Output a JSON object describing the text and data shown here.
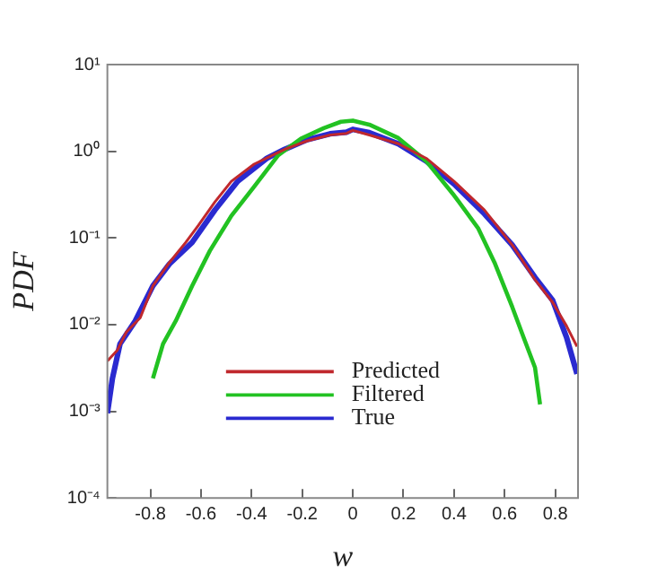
{
  "chart_data": {
    "type": "line",
    "xlabel": "w",
    "ylabel": "PDF",
    "log": "y",
    "grid": false,
    "legend": "bottom",
    "marker": "none",
    "line_style": "solid",
    "xlim": [
      -0.97,
      0.89
    ],
    "xticks": [
      -0.8,
      -0.6,
      -0.4,
      -0.2,
      0,
      0.2,
      0.4,
      0.6,
      0.8
    ],
    "ylim": [
      0.0001,
      10
    ],
    "yticks": [
      {
        "value": 0.0001,
        "label": "10⁻⁴"
      },
      {
        "value": 0.001,
        "label": "10⁻³"
      },
      {
        "value": 0.01,
        "label": "10⁻²"
      },
      {
        "value": 0.1,
        "label": "10⁻¹"
      },
      {
        "value": 1,
        "label": "10⁰"
      },
      {
        "value": 10,
        "label": "10¹"
      }
    ],
    "series": [
      {
        "name": "Predicted",
        "color": "#c0282d",
        "x": [
          -0.97,
          -0.93,
          -0.895,
          -0.84,
          -0.79,
          -0.725,
          -0.66,
          -0.61,
          -0.545,
          -0.48,
          -0.39,
          -0.27,
          -0.18,
          -0.09,
          -0.025,
          0,
          0.065,
          0.18,
          0.29,
          0.4,
          0.52,
          0.63,
          0.72,
          0.79,
          0.845,
          0.886
        ],
        "values": [
          0.0038,
          0.0051,
          0.0082,
          0.012,
          0.028,
          0.052,
          0.089,
          0.14,
          0.26,
          0.45,
          0.71,
          1.05,
          1.32,
          1.54,
          1.61,
          1.74,
          1.54,
          1.22,
          0.83,
          0.45,
          0.21,
          0.083,
          0.033,
          0.018,
          0.0096,
          0.0056
        ]
      },
      {
        "name": "Filtered",
        "color": "#22c222",
        "x": [
          -0.79,
          -0.75,
          -0.7,
          -0.635,
          -0.565,
          -0.48,
          -0.39,
          -0.295,
          -0.205,
          -0.115,
          -0.047,
          0,
          0.065,
          0.18,
          0.29,
          0.4,
          0.495,
          0.56,
          0.63,
          0.675,
          0.72,
          0.74
        ],
        "values": [
          0.0024,
          0.006,
          0.011,
          0.028,
          0.071,
          0.18,
          0.39,
          0.9,
          1.4,
          1.85,
          2.19,
          2.26,
          2.03,
          1.42,
          0.77,
          0.31,
          0.13,
          0.052,
          0.016,
          0.0071,
          0.0032,
          0.0012
        ]
      },
      {
        "name": "True",
        "color": "#2a2ad0",
        "x": [
          -0.97,
          -0.95,
          -0.92,
          -0.86,
          -0.79,
          -0.725,
          -0.635,
          -0.545,
          -0.455,
          -0.34,
          -0.27,
          -0.18,
          -0.09,
          -0.025,
          0,
          0.065,
          0.18,
          0.29,
          0.4,
          0.52,
          0.63,
          0.72,
          0.79,
          0.845,
          0.886
        ],
        "values": [
          0.00095,
          0.0024,
          0.006,
          0.011,
          0.028,
          0.05,
          0.089,
          0.21,
          0.45,
          0.83,
          1.05,
          1.36,
          1.59,
          1.66,
          1.79,
          1.64,
          1.22,
          0.77,
          0.42,
          0.19,
          0.083,
          0.035,
          0.019,
          0.0071,
          0.0027
        ]
      }
    ]
  }
}
